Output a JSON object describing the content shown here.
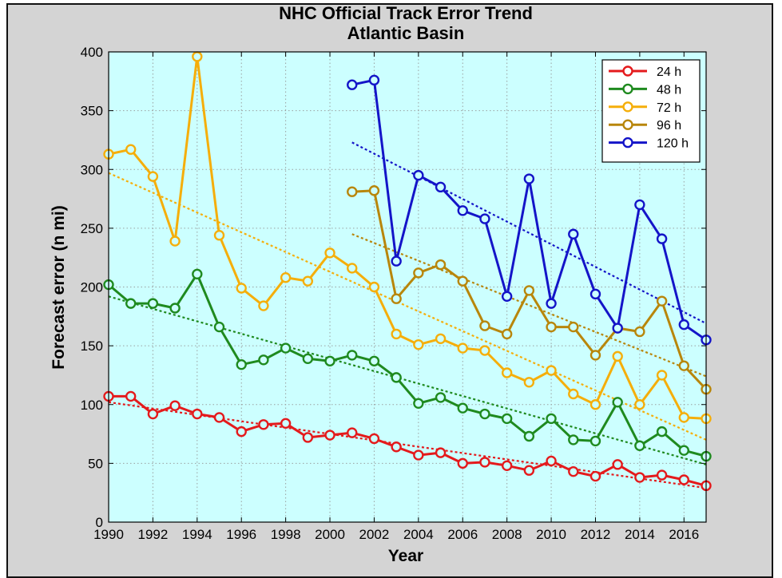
{
  "chart_data": {
    "type": "line",
    "title": "NHC Official Track Error Trend",
    "subtitle": "Atlantic Basin",
    "xlabel": "Year",
    "ylabel": "Forecast error (n mi)",
    "xlim": [
      1990,
      2017
    ],
    "ylim": [
      0,
      400
    ],
    "x_ticks": [
      1990,
      1992,
      1994,
      1996,
      1998,
      2000,
      2002,
      2004,
      2006,
      2008,
      2010,
      2012,
      2014,
      2016
    ],
    "y_ticks": [
      0,
      50,
      100,
      150,
      200,
      250,
      300,
      350,
      400
    ],
    "grid": true,
    "legend_position": "top-right",
    "plot_background": "#ccffff",
    "figure_background": "#d4d4d4",
    "series": [
      {
        "name": "24 h",
        "color": "#e41a1c",
        "x": [
          1990,
          1991,
          1992,
          1993,
          1994,
          1995,
          1996,
          1997,
          1998,
          1999,
          2000,
          2001,
          2002,
          2003,
          2004,
          2005,
          2006,
          2007,
          2008,
          2009,
          2010,
          2011,
          2012,
          2013,
          2014,
          2015,
          2016,
          2017
        ],
        "values": [
          107,
          107,
          92,
          99,
          92,
          89,
          77,
          83,
          84,
          72,
          74,
          76,
          71,
          64,
          57,
          59,
          50,
          51,
          48,
          44,
          52,
          43,
          39,
          49,
          38,
          40,
          36,
          31
        ],
        "trend": [
          [
            1990,
            102
          ],
          [
            2017,
            29
          ]
        ]
      },
      {
        "name": "48 h",
        "color": "#1f8a1f",
        "x": [
          1990,
          1991,
          1992,
          1993,
          1994,
          1995,
          1996,
          1997,
          1998,
          1999,
          2000,
          2001,
          2002,
          2003,
          2004,
          2005,
          2006,
          2007,
          2008,
          2009,
          2010,
          2011,
          2012,
          2013,
          2014,
          2015,
          2016,
          2017
        ],
        "values": [
          202,
          186,
          186,
          182,
          211,
          166,
          134,
          138,
          148,
          139,
          137,
          142,
          137,
          123,
          101,
          106,
          97,
          92,
          88,
          73,
          88,
          70,
          69,
          102,
          65,
          77,
          61,
          56
        ],
        "trend": [
          [
            1990,
            192
          ],
          [
            2017,
            49
          ]
        ]
      },
      {
        "name": "72 h",
        "color": "#f5ae0a",
        "x": [
          1990,
          1991,
          1992,
          1993,
          1994,
          1995,
          1996,
          1997,
          1998,
          1999,
          2000,
          2001,
          2002,
          2003,
          2004,
          2005,
          2006,
          2007,
          2008,
          2009,
          2010,
          2011,
          2012,
          2013,
          2014,
          2015,
          2016,
          2017
        ],
        "values": [
          313,
          317,
          294,
          239,
          396,
          244,
          199,
          184,
          208,
          205,
          229,
          216,
          200,
          160,
          151,
          156,
          148,
          146,
          127,
          119,
          129,
          109,
          100,
          141,
          100,
          125,
          89,
          88
        ],
        "trend": [
          [
            1990,
            297
          ],
          [
            2017,
            70
          ]
        ]
      },
      {
        "name": "96 h",
        "color": "#b8860b",
        "x": [
          2001,
          2002,
          2003,
          2004,
          2005,
          2006,
          2007,
          2008,
          2009,
          2010,
          2011,
          2012,
          2013,
          2014,
          2015,
          2016,
          2017
        ],
        "values": [
          281,
          282,
          190,
          212,
          219,
          205,
          167,
          160,
          197,
          166,
          166,
          142,
          165,
          162,
          188,
          133,
          113
        ],
        "trend": [
          [
            2001,
            245
          ],
          [
            2017,
            124
          ]
        ]
      },
      {
        "name": "120 h",
        "color": "#1414c8",
        "x": [
          2001,
          2002,
          2003,
          2004,
          2005,
          2006,
          2007,
          2008,
          2009,
          2010,
          2011,
          2012,
          2013,
          2014,
          2015,
          2016,
          2017
        ],
        "values": [
          372,
          376,
          222,
          295,
          285,
          265,
          258,
          192,
          292,
          186,
          245,
          194,
          165,
          270,
          241,
          168,
          155
        ],
        "trend": [
          [
            2001,
            323
          ],
          [
            2017,
            169
          ]
        ]
      }
    ]
  }
}
